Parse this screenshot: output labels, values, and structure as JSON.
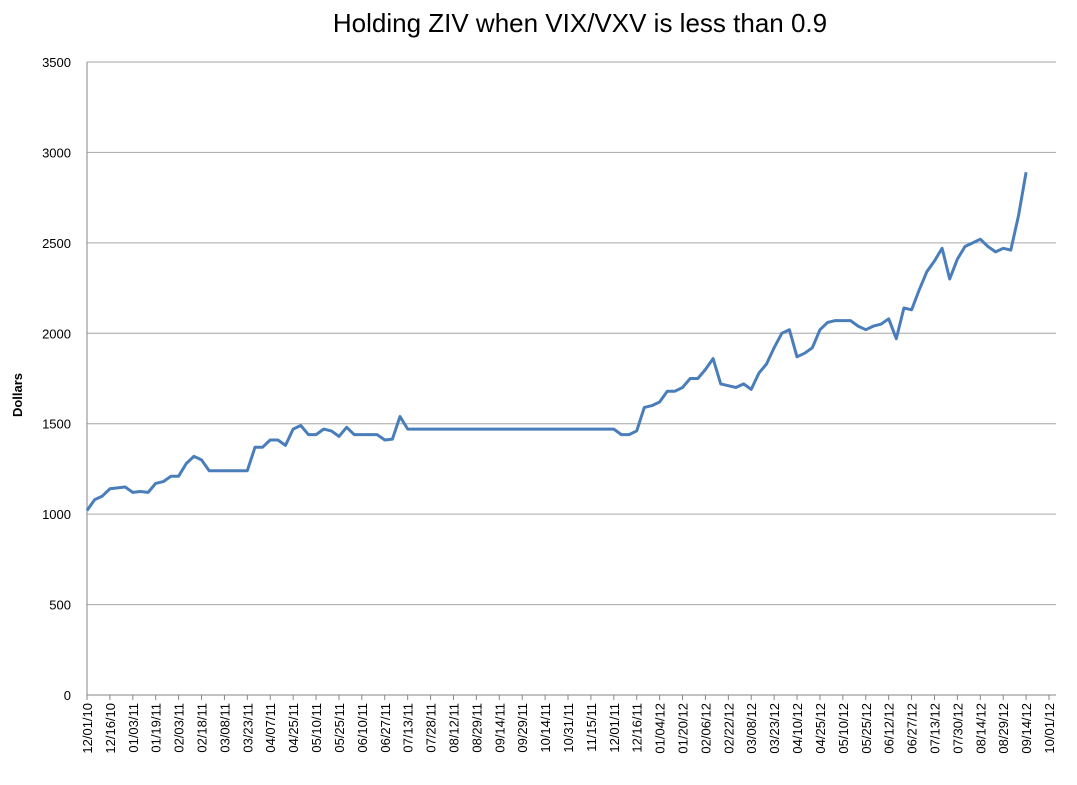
{
  "chart_data": {
    "type": "line",
    "title": "Holding ZIV when VIX/VXV is less than 0.9",
    "y_label": "Dollars",
    "categories": [
      "12/01/10",
      null,
      null,
      "12/16/10",
      null,
      null,
      "01/03/11",
      null,
      null,
      "01/19/11",
      null,
      null,
      "02/03/11",
      null,
      null,
      "02/18/11",
      null,
      null,
      "03/08/11",
      null,
      null,
      "03/23/11",
      null,
      null,
      "04/07/11",
      null,
      null,
      "04/25/11",
      null,
      null,
      "05/10/11",
      null,
      null,
      "05/25/11",
      null,
      null,
      "06/10/11",
      null,
      null,
      "06/27/11",
      null,
      null,
      "07/13/11",
      null,
      null,
      "07/28/11",
      null,
      null,
      "08/12/11",
      null,
      null,
      "08/29/11",
      null,
      null,
      "09/14/11",
      null,
      null,
      "09/29/11",
      null,
      null,
      "10/14/11",
      null,
      null,
      "10/31/11",
      null,
      null,
      "11/15/11",
      null,
      null,
      "12/01/11",
      null,
      null,
      "12/16/11",
      null,
      null,
      "01/04/12",
      null,
      null,
      "01/20/12",
      null,
      null,
      "02/06/12",
      null,
      null,
      "02/22/12",
      null,
      null,
      "03/08/12",
      null,
      null,
      "03/23/12",
      null,
      null,
      "04/10/12",
      null,
      null,
      "04/25/12",
      null,
      null,
      "05/10/12",
      null,
      null,
      "05/25/12",
      null,
      null,
      "06/12/12",
      null,
      null,
      "06/27/12",
      null,
      null,
      "07/13/12",
      null,
      null,
      "07/30/12",
      null,
      null,
      "08/14/12",
      null,
      null,
      "08/29/12",
      null,
      null,
      "09/14/12",
      null,
      null,
      "10/01/12"
    ],
    "series": [
      {
        "name": "ZIV",
        "color": "#4a7ebb",
        "values": [
          1020,
          1080,
          1100,
          1140,
          1145,
          1150,
          1120,
          1125,
          1120,
          1170,
          1180,
          1210,
          1210,
          1280,
          1320,
          1300,
          1240,
          1240,
          1240,
          1240,
          1240,
          1240,
          1370,
          1370,
          1410,
          1410,
          1380,
          1470,
          1490,
          1440,
          1440,
          1470,
          1460,
          1430,
          1480,
          1440,
          1440,
          1440,
          1440,
          1410,
          1415,
          1540,
          1470,
          1470,
          1470,
          1470,
          1470,
          1470,
          1470,
          1470,
          1470,
          1470,
          1470,
          1470,
          1470,
          1470,
          1470,
          1470,
          1470,
          1470,
          1470,
          1470,
          1470,
          1470,
          1470,
          1470,
          1470,
          1470,
          1470,
          1470,
          1440,
          1440,
          1460,
          1590,
          1600,
          1620,
          1680,
          1680,
          1700,
          1750,
          1750,
          1800,
          1860,
          1720,
          1710,
          1700,
          1720,
          1690,
          1780,
          1830,
          1920,
          2000,
          2020,
          1870,
          1890,
          1920,
          2020,
          2060,
          2070,
          2070,
          2070,
          2040,
          2020,
          2040,
          2050,
          2080,
          1970,
          2140,
          2130,
          2240,
          2340,
          2400,
          2470,
          2300,
          2410,
          2480,
          2500,
          2520,
          2480,
          2450,
          2470,
          2460,
          2650,
          2890,
          null,
          null,
          null
        ]
      }
    ],
    "ylim": [
      0,
      3500
    ],
    "yticks": [
      0,
      500,
      1000,
      1500,
      2000,
      2500,
      3000,
      3500
    ],
    "grid": true
  }
}
